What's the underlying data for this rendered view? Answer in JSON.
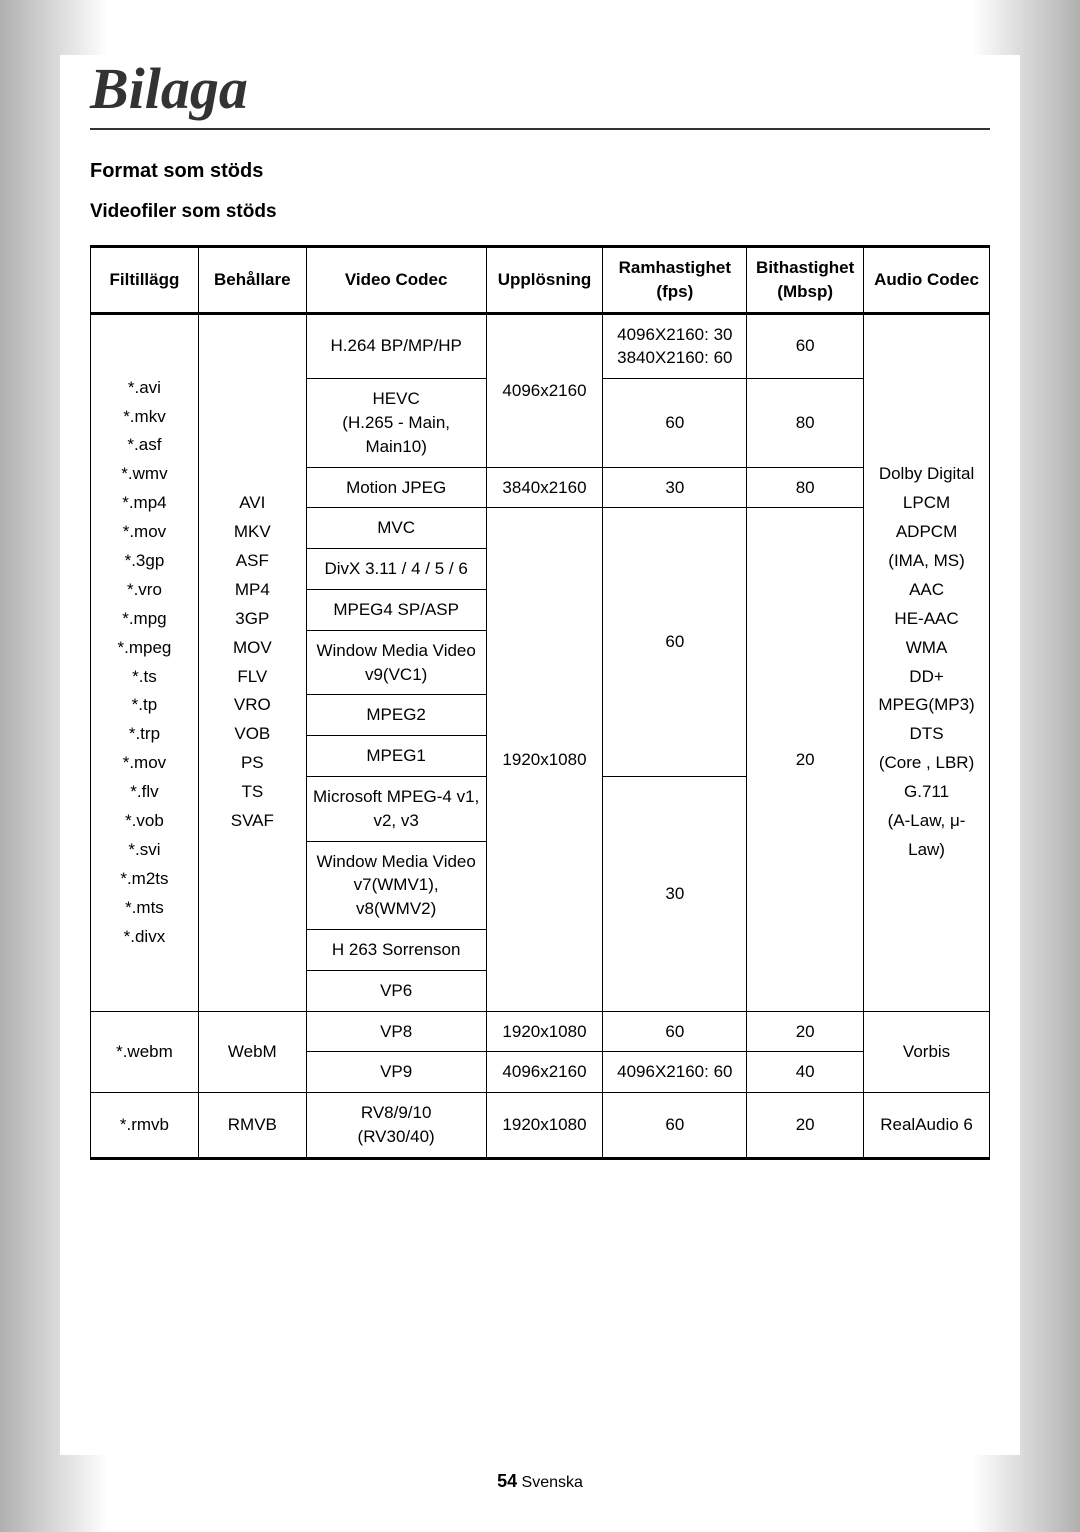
{
  "chapter": "Bilaga",
  "section": "Format som stöds",
  "subsection": "Videofiler som stöds",
  "table": {
    "headers": [
      "Filtillägg",
      "Behållare",
      "Video Codec",
      "Upplösning",
      "Ramhastighet\n(fps)",
      "Bithastighet\n(Mbsp)",
      "Audio Codec"
    ],
    "group1": {
      "ext": "*.avi\n*.mkv\n*.asf\n*.wmv\n*.mp4\n*.mov\n*.3gp\n*.vro\n*.mpg\n*.mpeg\n*.ts\n*.tp\n*.trp\n*.mov\n*.flv\n*.vob\n*.svi\n*.m2ts\n*.mts\n*.divx",
      "container": "AVI\nMKV\nASF\nMP4\n3GP\nMOV\nFLV\nVRO\nVOB\nPS\nTS\nSVAF",
      "audio": "Dolby Digital\nLPCM\nADPCM\n(IMA, MS)\nAAC\nHE-AAC\nWMA\nDD+\nMPEG(MP3)\nDTS\n(Core , LBR)\nG.711\n(A-Law, μ-Law)",
      "rows": [
        {
          "codec": "H.264 BP/MP/HP",
          "res": null,
          "fps": "4096X2160: 30\n3840X2160: 60",
          "bit": "60"
        },
        {
          "codec": "HEVC\n(H.265 - Main, Main10)",
          "res": "4096x2160",
          "fps": "60",
          "bit": "80"
        },
        {
          "codec": "Motion JPEG",
          "res": "3840x2160",
          "fps": "30",
          "bit": "80"
        },
        {
          "codec": "MVC",
          "res": null,
          "fps": null,
          "bit": null
        },
        {
          "codec": "DivX 3.11 / 4 / 5 / 6",
          "res": null,
          "fps": null,
          "bit": null
        },
        {
          "codec": "MPEG4 SP/ASP",
          "res": null,
          "fps": "60",
          "bit": null
        },
        {
          "codec": "Window Media Video v9(VC1)",
          "res": null,
          "fps": null,
          "bit": null
        },
        {
          "codec": "MPEG2",
          "res": null,
          "fps": null,
          "bit": null
        },
        {
          "codec": "MPEG1",
          "res": "1920x1080",
          "fps": null,
          "bit": "20"
        },
        {
          "codec": "Microsoft MPEG-4 v1, v2, v3",
          "res": null,
          "fps": null,
          "bit": null
        },
        {
          "codec": "Window Media Video v7(WMV1), v8(WMV2)",
          "res": null,
          "fps": "30",
          "bit": null
        },
        {
          "codec": "H 263 Sorrenson",
          "res": null,
          "fps": null,
          "bit": null
        },
        {
          "codec": "VP6",
          "res": null,
          "fps": null,
          "bit": null
        }
      ]
    },
    "group2": {
      "ext": "*.webm",
      "container": "WebM",
      "audio": "Vorbis",
      "rows": [
        {
          "codec": "VP8",
          "res": "1920x1080",
          "fps": "60",
          "bit": "20"
        },
        {
          "codec": "VP9",
          "res": "4096x2160",
          "fps": "4096X2160: 60",
          "bit": "40"
        }
      ]
    },
    "group3": {
      "ext": "*.rmvb",
      "container": "RMVB",
      "codec": "RV8/9/10\n(RV30/40)",
      "res": "1920x1080",
      "fps": "60",
      "bit": "20",
      "audio": "RealAudio 6"
    }
  },
  "footer": {
    "page": "54",
    "lang": "Svenska"
  }
}
